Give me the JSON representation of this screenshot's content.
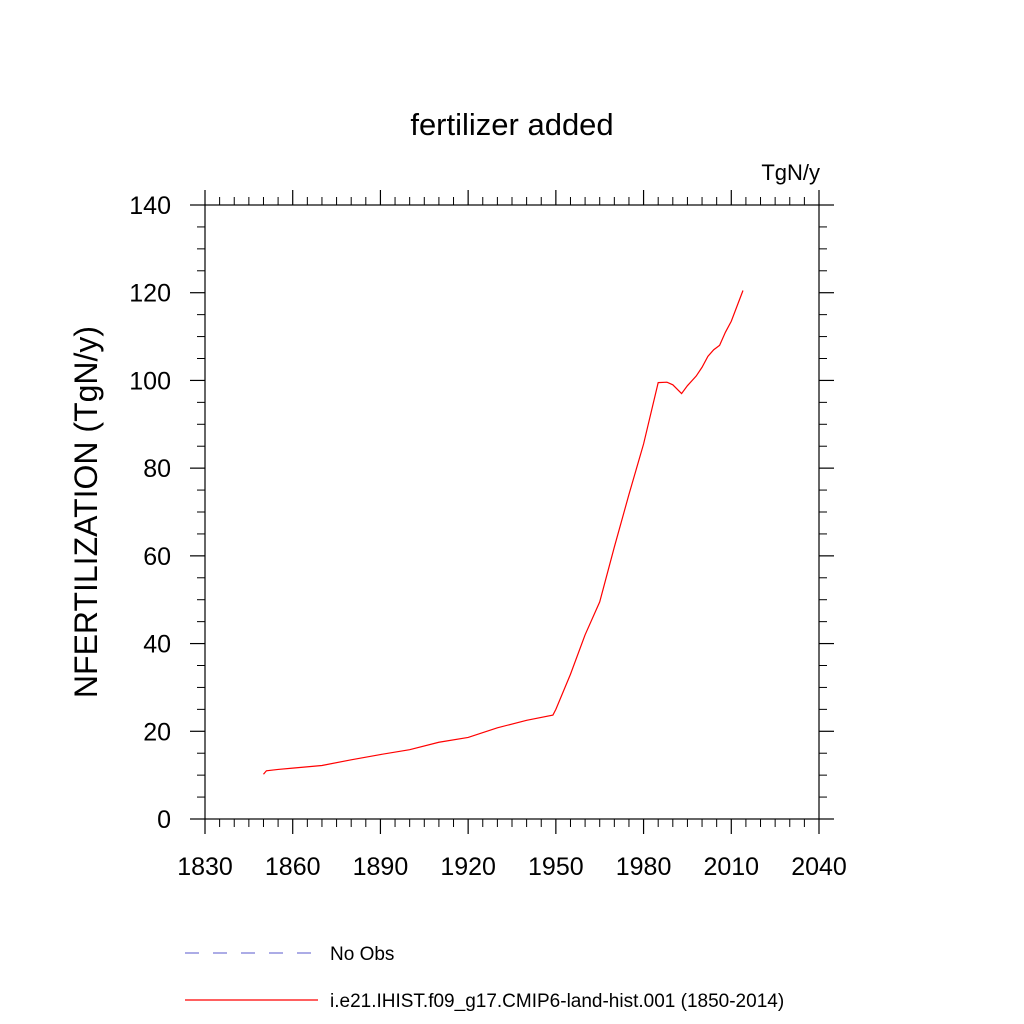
{
  "chart_data": {
    "type": "line",
    "title": "fertilizer added",
    "units_label": "TgN/y",
    "ylabel": "NFERTILIZATION  (TgN/y)",
    "xlabel": "",
    "xlim": [
      1830,
      2040
    ],
    "ylim": [
      0,
      140
    ],
    "x_ticks": [
      1830,
      1860,
      1890,
      1920,
      1950,
      1980,
      2010,
      2040
    ],
    "y_ticks": [
      0,
      20,
      40,
      60,
      80,
      100,
      120,
      140
    ],
    "grid": false,
    "legend_position": "bottom",
    "series": [
      {
        "name": "i.e21.IHIST.f09_g17.CMIP6-land-hist.001 (1850-2014)",
        "color": "#ff0000",
        "style": "solid",
        "x": [
          1850,
          1851,
          1855,
          1860,
          1870,
          1880,
          1890,
          1900,
          1910,
          1920,
          1930,
          1940,
          1949,
          1950,
          1955,
          1960,
          1965,
          1970,
          1975,
          1980,
          1985,
          1988,
          1990,
          1993,
          1995,
          1998,
          2000,
          2002,
          2004,
          2006,
          2008,
          2010,
          2012,
          2014
        ],
        "y": [
          10.2,
          11.0,
          11.3,
          11.6,
          12.2,
          13.5,
          14.7,
          15.8,
          17.5,
          18.6,
          20.8,
          22.5,
          23.7,
          25.0,
          33.0,
          42.0,
          49.5,
          62.0,
          74.0,
          85.5,
          99.5,
          99.6,
          99.0,
          97.0,
          98.8,
          101.0,
          103.0,
          105.5,
          107.0,
          108.0,
          111.0,
          113.5,
          117.0,
          120.5
        ]
      },
      {
        "name": "No Obs",
        "color": "#7b7bd6",
        "style": "dashed",
        "x": [],
        "y": []
      }
    ]
  }
}
